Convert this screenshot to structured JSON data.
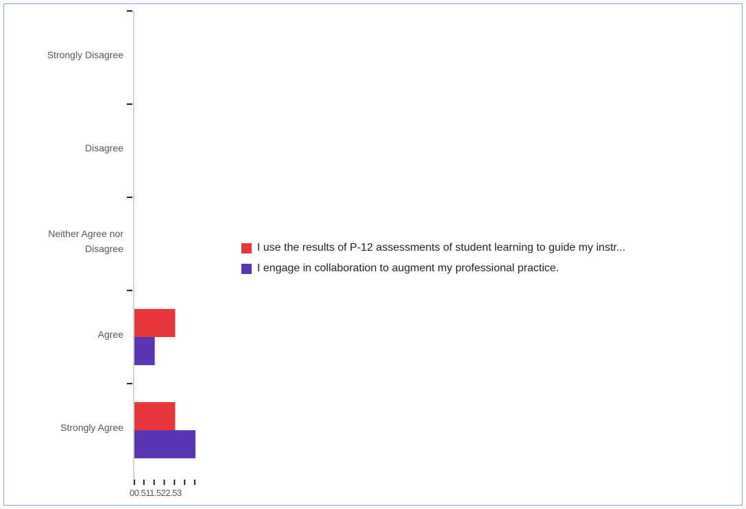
{
  "chart_data": {
    "type": "bar",
    "orientation": "horizontal",
    "categories": [
      "Strongly Disagree",
      "Disagree",
      "Neither Agree nor Disagree",
      "Agree",
      "Strongly Agree"
    ],
    "category_lines": [
      [
        "Strongly Disagree"
      ],
      [
        "Disagree"
      ],
      [
        "Neither Agree nor",
        "Disagree"
      ],
      [
        "Agree"
      ],
      [
        "Strongly Agree"
      ]
    ],
    "series": [
      {
        "name": "I use the results of P-12 assessments of student learning to guide my instr...",
        "color": "#e8373b",
        "values": [
          0,
          0,
          0,
          2,
          2
        ]
      },
      {
        "name": "I engage in collaboration to augment my professional practice.",
        "color": "#5b36b4",
        "values": [
          0,
          0,
          0,
          1,
          3
        ]
      }
    ],
    "x_ticks": [
      "0",
      "0.5",
      "1",
      "1.5",
      "2",
      "2.5",
      "3"
    ],
    "xlim": [
      0,
      3
    ],
    "grid": false,
    "legend_position": "right"
  }
}
